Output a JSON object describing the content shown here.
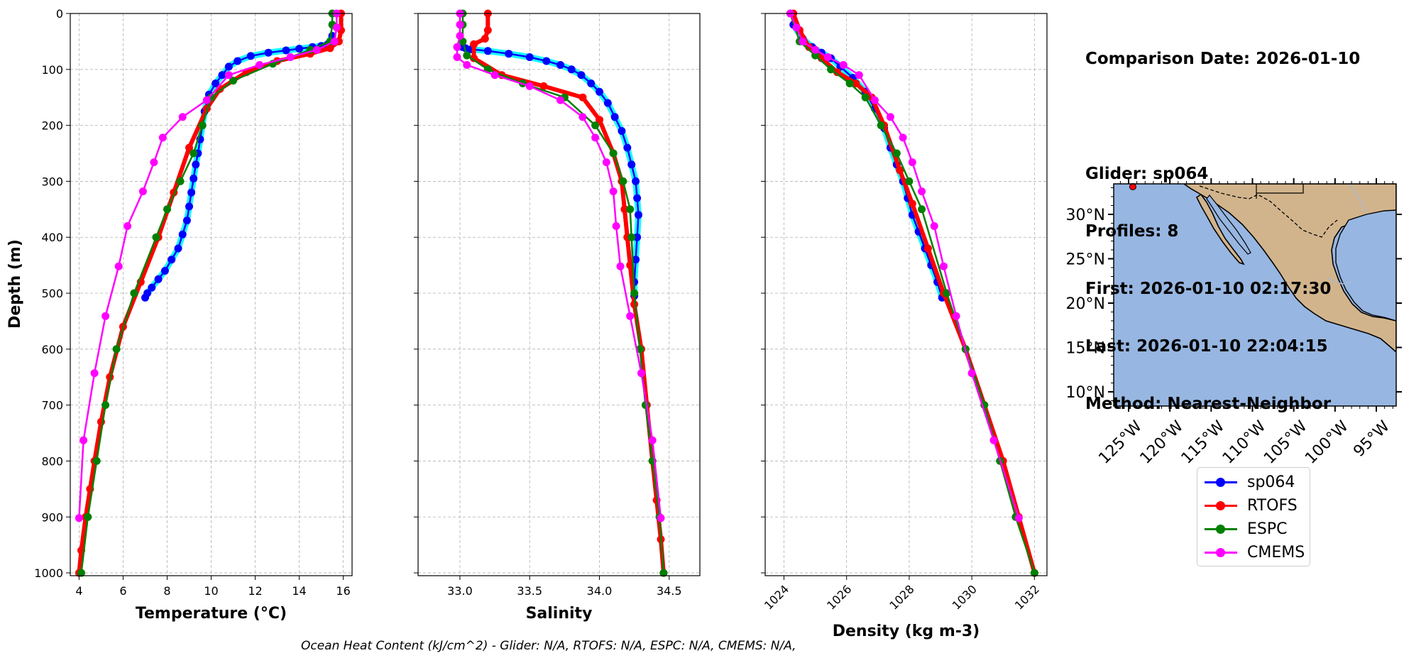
{
  "info": {
    "comparison_date": "Comparison Date: 2026-01-10",
    "glider": "Glider: sp064",
    "profiles": "Profiles: 8",
    "first": "First: 2026-01-10 02:17:30",
    "last": "Last: 2026-01-10 22:04:15",
    "method": "Method: Nearest-Neighbor"
  },
  "footer": "Ocean Heat Content (kJ/cm^2) - Glider: N/A,  RTOFS: N/A,  ESPC: N/A,  CMEMS: N/A,",
  "colors": {
    "sp064": "#0000ff",
    "sp064_individual": "#00ffff",
    "RTOFS": "#ff0000",
    "ESPC": "#008000",
    "CMEMS": "#ff00ff",
    "ocean": "#97b6e1",
    "land": "#d2b48c"
  },
  "legend": [
    {
      "name": "sp064",
      "color": "#0000ff"
    },
    {
      "name": "RTOFS",
      "color": "#ff0000"
    },
    {
      "name": "ESPC",
      "color": "#008000"
    },
    {
      "name": "CMEMS",
      "color": "#ff00ff"
    }
  ],
  "chart_data": [
    {
      "type": "line",
      "xlabel": "Temperature (°C)",
      "ylabel": "Depth (m)",
      "xlim": [
        3.6,
        16.4
      ],
      "ylim": [
        1005,
        0
      ],
      "xticks": [
        4,
        6,
        8,
        10,
        12,
        14,
        16
      ],
      "yticks": [
        0,
        100,
        200,
        300,
        400,
        500,
        600,
        700,
        800,
        900,
        1000
      ],
      "grid": true,
      "series": [
        {
          "name": "sp064",
          "x": [
            15.5,
            15.3,
            15.0,
            14.6,
            14.0,
            13.4,
            12.6,
            11.8,
            11.2,
            10.8,
            10.5,
            10.2,
            9.9,
            9.7,
            9.6,
            9.5,
            9.4,
            9.3,
            9.2,
            9.1,
            9.0,
            8.9,
            8.7,
            8.5,
            8.2,
            7.9,
            7.6,
            7.3,
            7.1,
            7.0
          ],
          "y": [
            40,
            55,
            58,
            60,
            63,
            66,
            70,
            76,
            85,
            95,
            110,
            125,
            145,
            175,
            200,
            225,
            250,
            270,
            295,
            320,
            345,
            370,
            395,
            420,
            440,
            460,
            475,
            490,
            500,
            508
          ]
        },
        {
          "name": "RTOFS",
          "x": [
            15.9,
            15.9,
            15.8,
            15.4,
            14.5,
            13.0,
            11.6,
            10.4,
            9.8,
            9.0,
            8.3,
            7.6,
            6.8,
            6.0,
            5.4,
            5.0,
            4.7,
            4.5,
            4.3,
            4.1,
            4.0
          ],
          "y": [
            0,
            30,
            50,
            62,
            72,
            85,
            105,
            135,
            170,
            240,
            320,
            400,
            480,
            560,
            650,
            730,
            800,
            850,
            900,
            960,
            1000
          ]
        },
        {
          "name": "ESPC",
          "x": [
            15.5,
            15.5,
            15.4,
            14.5,
            12.8,
            11.0,
            10.0,
            9.6,
            9.2,
            8.6,
            8.0,
            7.5,
            6.5,
            5.7,
            5.2,
            4.8,
            4.4,
            4.1
          ],
          "y": [
            0,
            20,
            50,
            65,
            90,
            120,
            150,
            200,
            250,
            300,
            350,
            400,
            500,
            600,
            700,
            800,
            900,
            1000
          ]
        },
        {
          "name": "CMEMS",
          "x": [
            15.7,
            15.7,
            15.6,
            14.8,
            13.6,
            12.2,
            10.8,
            9.8,
            8.7,
            7.8,
            7.4,
            6.9,
            6.2,
            5.8,
            5.2,
            4.7,
            4.2,
            4.0
          ],
          "y": [
            0,
            25,
            50,
            65,
            78,
            92,
            110,
            155,
            185,
            222,
            266,
            318,
            380,
            452,
            541,
            643,
            763,
            902
          ]
        }
      ]
    },
    {
      "type": "line",
      "xlabel": "Salinity",
      "xlim": [
        32.7,
        34.72
      ],
      "ylim": [
        1005,
        0
      ],
      "xticks": [
        33.0,
        33.5,
        34.0,
        34.5
      ],
      "xtick_labels": [
        "33.0",
        "33.5",
        "34.0",
        "34.5"
      ],
      "grid": true,
      "series": [
        {
          "name": "sp064",
          "x": [
            33.02,
            33.04,
            33.08,
            33.2,
            33.35,
            33.5,
            33.62,
            33.72,
            33.8,
            33.87,
            33.94,
            34.0,
            34.06,
            34.11,
            34.16,
            34.2,
            34.23,
            34.26,
            34.27,
            34.28,
            34.27,
            34.26,
            34.25,
            34.25
          ],
          "y": [
            60,
            62,
            64,
            67,
            72,
            78,
            85,
            92,
            100,
            110,
            125,
            140,
            160,
            185,
            210,
            240,
            270,
            300,
            330,
            360,
            400,
            440,
            480,
            505
          ]
        },
        {
          "name": "RTOFS",
          "x": [
            33.2,
            33.2,
            33.18,
            33.1,
            33.1,
            33.3,
            33.6,
            33.88,
            34.0,
            34.1,
            34.16,
            34.18,
            34.2,
            34.22,
            34.25,
            34.3,
            34.34,
            34.38,
            34.41,
            34.44,
            34.46
          ],
          "y": [
            0,
            30,
            45,
            55,
            80,
            110,
            130,
            150,
            190,
            250,
            300,
            350,
            400,
            450,
            520,
            600,
            700,
            800,
            870,
            940,
            1000
          ]
        },
        {
          "name": "ESPC",
          "x": [
            33.02,
            33.02,
            33.02,
            33.05,
            33.2,
            33.45,
            33.75,
            33.97,
            34.1,
            34.17,
            34.22,
            34.23,
            34.25,
            34.29,
            34.33,
            34.38,
            34.43,
            34.46
          ],
          "y": [
            0,
            20,
            50,
            75,
            100,
            125,
            150,
            200,
            250,
            300,
            350,
            400,
            500,
            600,
            700,
            800,
            900,
            1000
          ]
        },
        {
          "name": "CMEMS",
          "x": [
            33.0,
            33.0,
            33.0,
            32.98,
            32.98,
            33.05,
            33.25,
            33.5,
            33.72,
            33.88,
            33.97,
            34.05,
            34.1,
            34.12,
            34.15,
            34.22,
            34.3,
            34.38,
            34.44
          ],
          "y": [
            0,
            20,
            40,
            60,
            78,
            92,
            110,
            130,
            155,
            185,
            222,
            266,
            318,
            380,
            452,
            541,
            643,
            763,
            902
          ]
        }
      ]
    },
    {
      "type": "line",
      "xlabel": "Density (kg m-3)",
      "xlim": [
        1023.4,
        1032.4
      ],
      "ylim": [
        1005,
        0
      ],
      "xticks": [
        1024,
        1026,
        1028,
        1030,
        1032
      ],
      "grid": true,
      "series": [
        {
          "name": "sp064",
          "x": [
            1024.3,
            1024.6,
            1024.9,
            1025.2,
            1025.5,
            1025.8,
            1026.2,
            1026.6,
            1026.9,
            1027.2,
            1027.4,
            1027.6,
            1027.8,
            1027.95,
            1028.1,
            1028.3,
            1028.5,
            1028.7,
            1028.9,
            1029.05
          ],
          "y": [
            20,
            45,
            60,
            70,
            80,
            95,
            115,
            140,
            170,
            205,
            240,
            270,
            300,
            330,
            360,
            390,
            420,
            450,
            480,
            508
          ]
        },
        {
          "name": "RTOFS",
          "x": [
            1024.3,
            1024.5,
            1024.8,
            1025.2,
            1025.7,
            1026.3,
            1026.8,
            1027.2,
            1027.7,
            1028.1,
            1028.6,
            1029.1,
            1029.8,
            1030.4,
            1031.0,
            1031.5,
            1032.0
          ],
          "y": [
            0,
            30,
            60,
            80,
            105,
            125,
            150,
            200,
            280,
            340,
            420,
            500,
            600,
            700,
            800,
            900,
            1000
          ]
        },
        {
          "name": "ESPC",
          "x": [
            1024.2,
            1024.5,
            1025.0,
            1025.5,
            1026.1,
            1026.6,
            1027.1,
            1027.6,
            1028.0,
            1028.4,
            1029.2,
            1029.8,
            1030.4,
            1030.9,
            1031.4,
            1032.0
          ],
          "y": [
            0,
            50,
            75,
            100,
            125,
            150,
            200,
            250,
            300,
            350,
            500,
            600,
            700,
            800,
            900,
            1000
          ]
        },
        {
          "name": "CMEMS",
          "x": [
            1024.2,
            1024.4,
            1024.6,
            1025.0,
            1025.4,
            1025.9,
            1026.4,
            1026.9,
            1027.4,
            1027.8,
            1028.1,
            1028.4,
            1028.8,
            1029.1,
            1029.5,
            1030.0,
            1030.7,
            1031.5
          ],
          "y": [
            0,
            25,
            50,
            65,
            78,
            92,
            110,
            155,
            185,
            222,
            266,
            318,
            380,
            452,
            541,
            643,
            763,
            902
          ]
        }
      ]
    }
  ],
  "map": {
    "lat_ticks": [
      "30°N",
      "25°N",
      "20°N",
      "15°N",
      "10°N"
    ],
    "lon_ticks": [
      "125°W",
      "120°W",
      "115°W",
      "110°W",
      "105°W",
      "100°W",
      "95°W"
    ]
  }
}
